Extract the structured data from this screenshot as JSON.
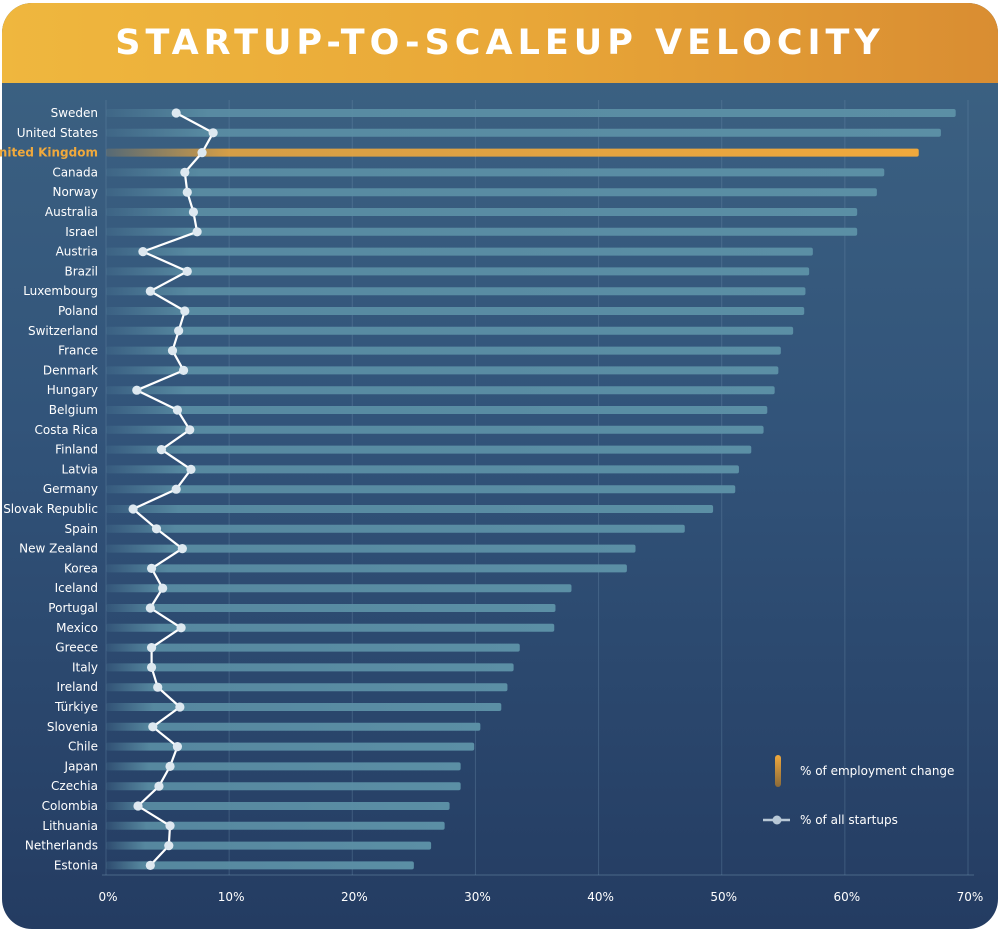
{
  "title": "STARTUP-TO-SCALEUP VELOCITY",
  "legend": {
    "employment": "% of employment change",
    "startups": "% of all startups"
  },
  "colors": {
    "banner": "#e9a838",
    "bar": "#5b8fa5",
    "highlight_bar": "#f0a93c",
    "highlight_label": "#f0a93c",
    "line": "#ffffff",
    "marker": "#dde8f0"
  },
  "chart_data": {
    "type": "bar",
    "orientation": "horizontal",
    "highlight": "United Kingdom",
    "xlim": [
      0,
      70
    ],
    "xticks": [
      0,
      10,
      20,
      30,
      40,
      50,
      60,
      70
    ],
    "xtick_labels": [
      "0%",
      "10%",
      "20%",
      "30%",
      "40%",
      "50%",
      "60%",
      "70%"
    ],
    "grid": true,
    "legend_position": "bottom-right",
    "categories": [
      "Sweden",
      "United States",
      "United Kingdom",
      "Canada",
      "Norway",
      "Australia",
      "Israel",
      "Austria",
      "Brazil",
      "Luxembourg",
      "Poland",
      "Switzerland",
      "France",
      "Denmark",
      "Hungary",
      "Belgium",
      "Costa Rica",
      "Finland",
      "Latvia",
      "Germany",
      "Slovak Republic",
      "Spain",
      "New Zealand",
      "Korea",
      "Iceland",
      "Portugal",
      "Mexico",
      "Greece",
      "Italy",
      "Ireland",
      "Türkiye",
      "Slovenia",
      "Chile",
      "Japan",
      "Czechia",
      "Colombia",
      "Lithuania",
      "Netherlands",
      "Estonia"
    ],
    "series": [
      {
        "name": "% of employment change",
        "type": "bar",
        "values": [
          69.0,
          67.8,
          66.0,
          63.2,
          62.6,
          61.0,
          61.0,
          57.4,
          57.1,
          56.8,
          56.7,
          55.8,
          54.8,
          54.6,
          54.3,
          53.7,
          53.4,
          52.4,
          51.4,
          51.1,
          49.3,
          47.0,
          43.0,
          42.3,
          37.8,
          36.5,
          36.4,
          33.6,
          33.1,
          32.6,
          32.1,
          30.4,
          29.9,
          28.8,
          28.8,
          27.9,
          27.5,
          26.4,
          25.0
        ]
      },
      {
        "name": "% of all startups",
        "type": "line",
        "values": [
          5.7,
          8.7,
          7.8,
          6.4,
          6.6,
          7.1,
          7.4,
          3.0,
          6.6,
          3.6,
          6.4,
          5.9,
          5.4,
          6.3,
          2.5,
          5.8,
          6.8,
          4.5,
          6.9,
          5.7,
          2.2,
          4.1,
          6.2,
          3.7,
          4.6,
          3.6,
          6.1,
          3.7,
          3.7,
          4.2,
          6.0,
          3.8,
          5.8,
          5.2,
          4.3,
          2.6,
          5.2,
          5.1,
          3.6
        ]
      }
    ]
  }
}
